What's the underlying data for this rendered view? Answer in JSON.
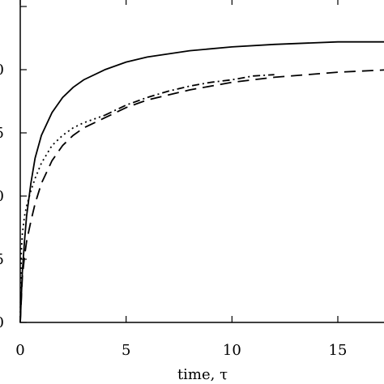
{
  "chart_data": {
    "type": "line",
    "xlabel": "time, τ",
    "ylabel": "",
    "xlim": [
      0,
      17.5
    ],
    "ylim": [
      0,
      1.25
    ],
    "x_ticks": [
      0,
      5,
      10,
      15
    ],
    "x_tick_labels": [
      "0",
      "5",
      "10",
      "15"
    ],
    "y_ticks": [
      0,
      0.25,
      0.5,
      0.75,
      1.0,
      1.25
    ],
    "y_tick_labels_visible": [
      "0",
      "5",
      "0",
      "5",
      "0",
      ""
    ],
    "grid": false,
    "series": [
      {
        "style": "solid",
        "x": [
          0,
          0.1,
          0.2,
          0.3,
          0.5,
          0.7,
          1.0,
          1.5,
          2.0,
          2.5,
          3.0,
          4.0,
          5.0,
          6.0,
          8.0,
          10.0,
          12.0,
          15.0,
          17.5
        ],
        "y": [
          0,
          0.2,
          0.32,
          0.42,
          0.55,
          0.65,
          0.74,
          0.83,
          0.89,
          0.93,
          0.96,
          1.0,
          1.03,
          1.05,
          1.075,
          1.09,
          1.1,
          1.11,
          1.11
        ]
      },
      {
        "style": "dotted",
        "x": [
          0,
          0.05,
          0.1,
          0.2,
          0.3,
          0.5,
          0.7,
          1.0,
          1.5,
          2.0,
          2.5,
          3.0,
          4.0
        ],
        "y": [
          0,
          0.28,
          0.35,
          0.42,
          0.46,
          0.52,
          0.57,
          0.63,
          0.7,
          0.74,
          0.77,
          0.79,
          0.82
        ]
      },
      {
        "style": "dashdot",
        "x": [
          4.0,
          5.0,
          6.0,
          7.0,
          8.0,
          9.0,
          10.0,
          11.0,
          12.0
        ],
        "y": [
          0.82,
          0.86,
          0.89,
          0.915,
          0.935,
          0.95,
          0.96,
          0.975,
          0.98
        ]
      },
      {
        "style": "dashed",
        "x": [
          0,
          0.1,
          0.2,
          0.3,
          0.5,
          0.7,
          1.0,
          1.5,
          2.0,
          2.5,
          3.0,
          4.0,
          5.0,
          6.0,
          8.0,
          10.0,
          12.0,
          15.0,
          17.5
        ],
        "y": [
          0,
          0.18,
          0.26,
          0.32,
          0.4,
          0.47,
          0.55,
          0.64,
          0.7,
          0.74,
          0.77,
          0.81,
          0.85,
          0.88,
          0.92,
          0.95,
          0.97,
          0.99,
          1.0
        ]
      }
    ]
  }
}
